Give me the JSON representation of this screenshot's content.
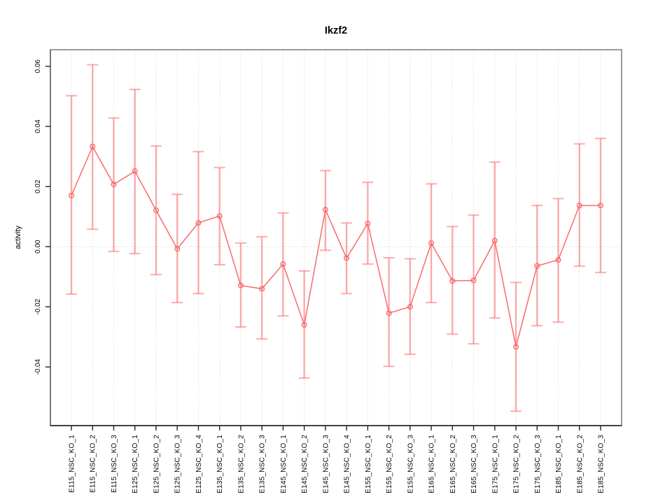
{
  "chart_data": {
    "type": "line",
    "title": "Ikzf2",
    "xlabel": "",
    "ylabel": "activity",
    "legend": "none",
    "grid": {
      "vertical_dotted_per_category": true,
      "zero_line_dotted": true
    },
    "ylim": [
      -0.0595,
      0.0655
    ],
    "yticks": [
      -0.04,
      -0.02,
      0.0,
      0.02,
      0.04,
      0.06
    ],
    "categories": [
      "E115_NSC_KO_1",
      "E115_NSC_KO_2",
      "E115_NSC_KO_3",
      "E125_NSC_KO_1",
      "E125_NSC_KO_2",
      "E125_NSC_KO_3",
      "E125_NSC_KO_4",
      "E135_NSC_KO_1",
      "E135_NSC_KO_2",
      "E135_NSC_KO_3",
      "E145_NSC_KO_1",
      "E145_NSC_KO_2",
      "E145_NSC_KO_3",
      "E145_NSC_KO_4",
      "E155_NSC_KO_1",
      "E155_NSC_KO_2",
      "E155_NSC_KO_3",
      "E165_NSC_KO_1",
      "E165_NSC_KO_2",
      "E165_NSC_KO_3",
      "E175_NSC_KO_1",
      "E175_NSC_KO_2",
      "E175_NSC_KO_3",
      "E185_NSC_KO_1",
      "E185_NSC_KO_2",
      "E185_NSC_KO_3"
    ],
    "series": [
      {
        "name": "activity",
        "marker": "open-circle",
        "values": [
          0.017,
          0.0333,
          0.0207,
          0.0251,
          0.0121,
          -0.0007,
          0.0079,
          0.0102,
          -0.0129,
          -0.014,
          -0.0058,
          -0.026,
          0.0123,
          -0.0038,
          0.0077,
          -0.0221,
          -0.02,
          0.0012,
          -0.0114,
          -0.0112,
          0.002,
          -0.0333,
          -0.0064,
          -0.0044,
          0.0137,
          0.0137
        ],
        "error_high": [
          0.0502,
          0.0605,
          0.0428,
          0.0523,
          0.0335,
          0.0174,
          0.0316,
          0.0263,
          0.0012,
          0.0033,
          0.0112,
          -0.0081,
          0.0253,
          0.0079,
          0.0214,
          -0.0037,
          -0.004,
          0.0209,
          0.0067,
          0.0105,
          0.0281,
          -0.0119,
          0.0137,
          0.016,
          0.0342,
          0.036
        ],
        "error_low": [
          -0.0158,
          0.0058,
          -0.0016,
          -0.0023,
          -0.0093,
          -0.0186,
          -0.0156,
          -0.006,
          -0.0267,
          -0.0307,
          -0.023,
          -0.0437,
          -0.0012,
          -0.0156,
          -0.0058,
          -0.0398,
          -0.0358,
          -0.0186,
          -0.0291,
          -0.0323,
          -0.0237,
          -0.0547,
          -0.0263,
          -0.0251,
          -0.0065,
          -0.0086
        ]
      }
    ],
    "colors": {
      "line": "#f96a6a",
      "point": "#f96a6a",
      "error_bar": "#f96a6a",
      "error_bar_opacity": 0.55,
      "grid": "#d9d9d9",
      "box": "#8f8f8f",
      "axis": "#222222",
      "left_axis": "#6e6e6e",
      "text": "#000000"
    }
  }
}
